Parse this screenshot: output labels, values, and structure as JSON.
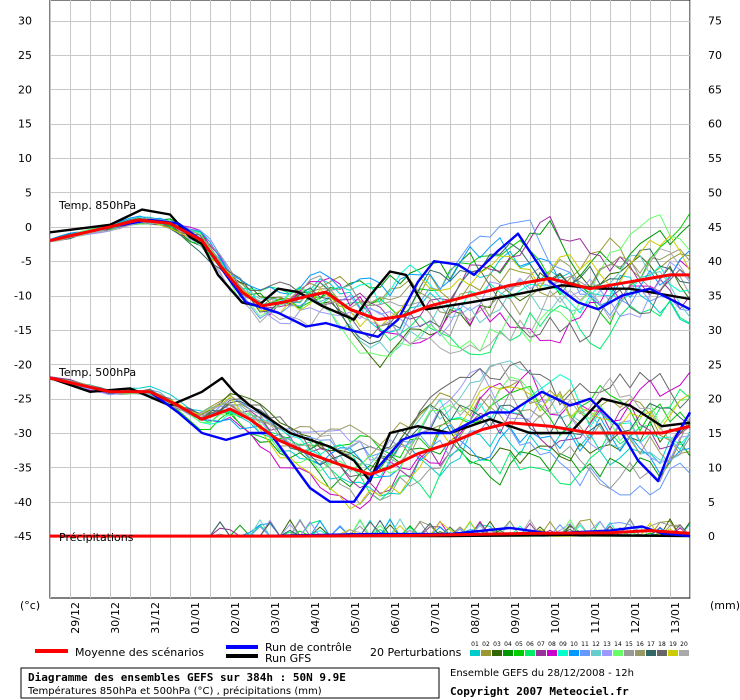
{
  "chart_data": {
    "type": "line",
    "left_axis_unit": "(°c)",
    "right_axis_unit": "(mm)",
    "left_ticks": [
      30,
      25,
      20,
      15,
      10,
      5,
      0,
      -5,
      -10,
      -15,
      -20,
      -25,
      -30,
      -35,
      -40,
      -45
    ],
    "right_ticks": [
      75,
      70,
      65,
      60,
      55,
      50,
      45,
      40,
      35,
      30,
      25,
      20,
      15,
      10,
      5,
      0
    ],
    "ylim_left": [
      -54,
      33
    ],
    "x_dates": [
      "29/12",
      "30/12",
      "31/12",
      "01/01",
      "02/01",
      "03/01",
      "04/01",
      "05/01",
      "06/01",
      "07/01",
      "08/01",
      "09/01",
      "10/01",
      "11/01",
      "12/01",
      "13/01"
    ],
    "xlim_days": [
      0,
      16
    ],
    "panel_labels": {
      "t850": "Temp. 850hPa",
      "t500": "Temp. 500hPa",
      "precip": "Précipitations"
    },
    "series": [
      {
        "key": "gfs_850",
        "color": "#000000",
        "values": [
          [
            0,
            -0.8
          ],
          [
            1.5,
            0.3
          ],
          [
            2.3,
            2.5
          ],
          [
            3,
            1.8
          ],
          [
            3.5,
            -1.5
          ],
          [
            3.8,
            -2.5
          ],
          [
            4.2,
            -7
          ],
          [
            4.8,
            -11
          ],
          [
            5.2,
            -11.5
          ],
          [
            5.7,
            -9
          ],
          [
            6.2,
            -9.5
          ],
          [
            6.8,
            -11.5
          ],
          [
            7.6,
            -13.5
          ],
          [
            8.0,
            -10
          ],
          [
            8.5,
            -6.5
          ],
          [
            8.9,
            -7
          ],
          [
            9.4,
            -12
          ],
          [
            10.5,
            -11
          ],
          [
            11.5,
            -10
          ],
          [
            12.8,
            -8.5
          ],
          [
            13.8,
            -9
          ],
          [
            14.5,
            -9
          ],
          [
            16,
            -10.5
          ]
        ]
      },
      {
        "key": "ctrl_850",
        "color": "#0000ff",
        "values": [
          [
            0,
            -2
          ],
          [
            1.5,
            0
          ],
          [
            2.5,
            1
          ],
          [
            3.2,
            0.5
          ],
          [
            3.8,
            -2
          ],
          [
            4.4,
            -7
          ],
          [
            4.9,
            -11
          ],
          [
            5.7,
            -12.5
          ],
          [
            6.4,
            -14.5
          ],
          [
            6.9,
            -14
          ],
          [
            7.5,
            -15
          ],
          [
            8.2,
            -16
          ],
          [
            8.7,
            -13.5
          ],
          [
            9.2,
            -8
          ],
          [
            9.6,
            -5
          ],
          [
            10.2,
            -5.5
          ],
          [
            10.6,
            -7
          ],
          [
            11.2,
            -3.5
          ],
          [
            11.7,
            -1
          ],
          [
            12.5,
            -8
          ],
          [
            13.2,
            -11
          ],
          [
            13.7,
            -12
          ],
          [
            14.3,
            -10
          ],
          [
            15,
            -9
          ],
          [
            16,
            -12
          ]
        ]
      },
      {
        "key": "mean_850",
        "color": "#ff0000",
        "values": [
          [
            0,
            -2
          ],
          [
            1.5,
            0
          ],
          [
            2.2,
            1
          ],
          [
            3,
            0.5
          ],
          [
            3.8,
            -2
          ],
          [
            4.3,
            -6
          ],
          [
            4.8,
            -9.5
          ],
          [
            5.3,
            -11.5
          ],
          [
            5.8,
            -11
          ],
          [
            6.5,
            -10
          ],
          [
            6.9,
            -9.5
          ],
          [
            7.5,
            -12
          ],
          [
            8.2,
            -13.5
          ],
          [
            8.8,
            -13
          ],
          [
            9.5,
            -11.5
          ],
          [
            10.5,
            -10
          ],
          [
            11.5,
            -8.5
          ],
          [
            12.5,
            -7.5
          ],
          [
            13.5,
            -9
          ],
          [
            14.5,
            -8
          ],
          [
            15.5,
            -7
          ],
          [
            16,
            -7
          ]
        ]
      },
      {
        "key": "gfs_500",
        "color": "#000000",
        "values": [
          [
            0,
            -22
          ],
          [
            1,
            -24
          ],
          [
            2,
            -23.5
          ],
          [
            3,
            -26
          ],
          [
            3.8,
            -24
          ],
          [
            4.3,
            -22
          ],
          [
            4.6,
            -24
          ],
          [
            5,
            -26
          ],
          [
            5.5,
            -28
          ],
          [
            6,
            -30
          ],
          [
            6.5,
            -31
          ],
          [
            7,
            -32
          ],
          [
            7.6,
            -34
          ],
          [
            8,
            -37
          ],
          [
            8.5,
            -30
          ],
          [
            9.2,
            -29
          ],
          [
            10,
            -30
          ],
          [
            11,
            -28
          ],
          [
            12,
            -30
          ],
          [
            13,
            -30
          ],
          [
            13.8,
            -25
          ],
          [
            14.5,
            -26
          ],
          [
            15.3,
            -29
          ],
          [
            16,
            -28.5
          ]
        ]
      },
      {
        "key": "ctrl_500",
        "color": "#0000ff",
        "values": [
          [
            0,
            -22
          ],
          [
            1.5,
            -24
          ],
          [
            2.5,
            -24
          ],
          [
            3.2,
            -27
          ],
          [
            3.8,
            -30
          ],
          [
            4.4,
            -31
          ],
          [
            5,
            -30
          ],
          [
            5.5,
            -30
          ],
          [
            6,
            -34
          ],
          [
            6.5,
            -38
          ],
          [
            7,
            -40
          ],
          [
            7.6,
            -40
          ],
          [
            8.2,
            -35
          ],
          [
            8.8,
            -31
          ],
          [
            9.3,
            -30
          ],
          [
            10,
            -30
          ],
          [
            11,
            -27
          ],
          [
            11.5,
            -27
          ],
          [
            12.3,
            -24
          ],
          [
            13,
            -26
          ],
          [
            13.5,
            -25
          ],
          [
            14.2,
            -29
          ],
          [
            14.7,
            -34
          ],
          [
            15.2,
            -37
          ],
          [
            15.6,
            -31
          ],
          [
            16,
            -27
          ]
        ]
      },
      {
        "key": "mean_500",
        "color": "#ff0000",
        "values": [
          [
            0,
            -22
          ],
          [
            1.5,
            -24
          ],
          [
            2.5,
            -24
          ],
          [
            3.2,
            -26
          ],
          [
            3.8,
            -28
          ],
          [
            4.5,
            -26.5
          ],
          [
            5,
            -28
          ],
          [
            5.7,
            -31
          ],
          [
            6.5,
            -33
          ],
          [
            7.2,
            -34.5
          ],
          [
            8,
            -36
          ],
          [
            8.5,
            -35
          ],
          [
            9.2,
            -33
          ],
          [
            10,
            -31.5
          ],
          [
            10.8,
            -29.5
          ],
          [
            11.5,
            -28.5
          ],
          [
            12.5,
            -29
          ],
          [
            13.5,
            -30
          ],
          [
            14.5,
            -30
          ],
          [
            15.3,
            -30
          ],
          [
            16,
            -29
          ]
        ]
      },
      {
        "key": "gfs_precip",
        "color": "#000000",
        "values": [
          [
            0,
            -45
          ],
          [
            6,
            -45
          ],
          [
            10,
            -45
          ],
          [
            13,
            -44.8
          ],
          [
            16,
            -45
          ]
        ]
      },
      {
        "key": "ctrl_precip",
        "color": "#0000ff",
        "values": [
          [
            0,
            -45
          ],
          [
            5,
            -45
          ],
          [
            8,
            -44.7
          ],
          [
            10,
            -44.7
          ],
          [
            11.5,
            -43.8
          ],
          [
            12.5,
            -44.6
          ],
          [
            14,
            -44.2
          ],
          [
            14.8,
            -43.6
          ],
          [
            15.3,
            -44.6
          ],
          [
            16,
            -45
          ]
        ]
      },
      {
        "key": "mean_precip",
        "color": "#ff0000",
        "values": [
          [
            0,
            -45
          ],
          [
            6,
            -45
          ],
          [
            9,
            -44.9
          ],
          [
            12,
            -44.6
          ],
          [
            14,
            -44.5
          ],
          [
            15,
            -44.2
          ],
          [
            16,
            -44.6
          ]
        ]
      }
    ],
    "perturbation_colors": [
      "#00cccc",
      "#999933",
      "#336600",
      "#009900",
      "#00cc00",
      "#00ee66",
      "#993399",
      "#cc00cc",
      "#00ffcc",
      "#0099ff",
      "#6699ff",
      "#66cccc",
      "#9999ff",
      "#66ff66",
      "#999999",
      "#999966",
      "#336666",
      "#666666",
      "#cccc00",
      "#aaaaaa"
    ]
  },
  "legend": {
    "mean_label": "Moyenne des scénarios",
    "control_label": "Run de contrôle",
    "gfs_label": "Run GFS",
    "perturbations_label": "20 Perturbations",
    "perturbation_numbers": [
      "01",
      "02",
      "03",
      "04",
      "05",
      "06",
      "07",
      "08",
      "09",
      "10",
      "11",
      "12",
      "13",
      "14",
      "15",
      "16",
      "17",
      "18",
      "19",
      "20"
    ],
    "colors": {
      "mean": "#ff0000",
      "control": "#0000ff",
      "gfs": "#000000"
    }
  },
  "footer": {
    "title": "Diagramme des ensembles GEFS sur 384h : 50N 9.9E",
    "subtitle": "Températures 850hPa et 500hPa (°C) , précipitations (mm)",
    "run_info": "Ensemble GEFS du 28/12/2008 - 12h",
    "copyright": "Copyright 2007 Meteociel.fr"
  }
}
